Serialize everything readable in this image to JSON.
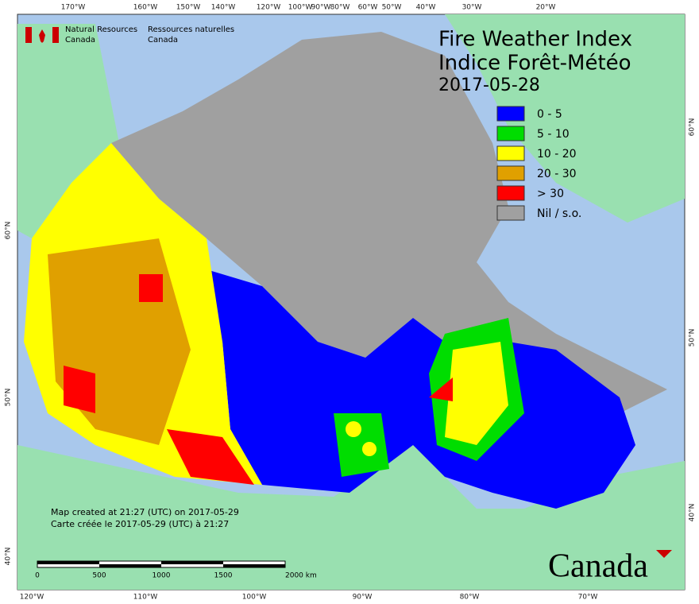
{
  "header": {
    "org_en": [
      "Natural Resources",
      "Canada"
    ],
    "org_fr": [
      "Ressources naturelles",
      "Canada"
    ]
  },
  "title": [
    "Fire Weather Index",
    "Indice Forêt-Météo"
  ],
  "date": "2017-05-28",
  "legend": [
    {
      "label": "0 - 5",
      "color": "#0000ff"
    },
    {
      "label": "5 - 10",
      "color": "#00dd00"
    },
    {
      "label": "10 - 20",
      "color": "#ffff00"
    },
    {
      "label": "20 - 30",
      "color": "#e0a000"
    },
    {
      "label": "> 30",
      "color": "#ff0000"
    },
    {
      "label": "Nil / s.o.",
      "color": "#a0a0a0"
    }
  ],
  "notes": [
    "Map created at 21:27 (UTC) on 2017-05-29",
    "Carte créée le 2017-05-29 (UTC) à 21:27"
  ],
  "scale_labels": [
    "0",
    "500",
    "1000",
    "1500",
    "2000 km"
  ],
  "graticule": {
    "top": [
      "170°W",
      "160°W",
      "150°W",
      "140°W",
      "120°W",
      "100°W",
      "90°W",
      "80°W",
      "60°W",
      "50°W",
      "40°W",
      "30°W",
      "20°W"
    ],
    "bottom": [
      "120°W",
      "110°W",
      "100°W",
      "90°W",
      "80°W",
      "70°W"
    ],
    "left": [
      "60°N",
      "50°N",
      "40°N"
    ],
    "right": [
      "60°N",
      "50°N",
      "40°N"
    ]
  },
  "wordmark": "Canada"
}
